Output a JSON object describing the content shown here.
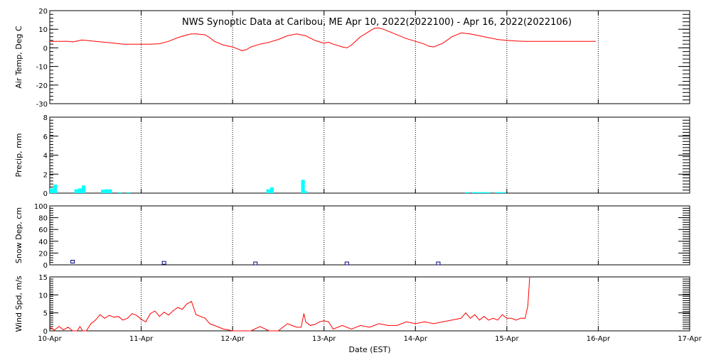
{
  "chart_data": [
    {
      "panel": "air-temp",
      "type": "line",
      "title": "NWS Synoptic Data at Caribou, ME   Apr 10, 2022(2022100) - Apr 16, 2022(2022106)",
      "ylabel": "Air Temp, Deg C",
      "ylim": [
        -30,
        20
      ],
      "yticks": [
        "20",
        "10",
        "0",
        "-10",
        "-20",
        "-30"
      ],
      "grid": "dotted vertical at day boundaries",
      "series": [
        {
          "color": "#ff0000",
          "x": [
            0.0,
            0.1,
            0.2,
            0.25,
            0.3,
            0.35,
            0.4,
            0.5,
            0.6,
            0.7,
            0.8,
            1.0,
            1.1,
            1.2,
            1.3,
            1.4,
            1.5,
            1.55,
            1.6,
            1.7,
            1.75,
            1.8,
            1.9,
            2.0,
            2.05,
            2.1,
            2.15,
            2.2,
            2.3,
            2.4,
            2.5,
            2.6,
            2.7,
            2.8,
            2.9,
            3.0,
            3.05,
            3.1,
            3.2,
            3.25,
            3.3,
            3.4,
            3.5,
            3.55,
            3.6,
            3.65,
            3.7,
            3.8,
            3.9,
            4.0,
            4.1,
            4.15,
            4.2,
            4.3,
            4.4,
            4.5,
            4.6,
            4.7,
            4.8,
            4.9,
            5.0,
            5.1,
            5.2,
            5.5,
            5.8,
            5.97
          ],
          "values": [
            3.5,
            3.5,
            3.5,
            3.2,
            3.7,
            4.2,
            4.0,
            3.5,
            3.0,
            2.5,
            2.0,
            2.0,
            2.0,
            2.2,
            3.5,
            5.5,
            7.0,
            7.5,
            7.5,
            7.0,
            5.5,
            3.5,
            1.5,
            0.5,
            -0.5,
            -1.5,
            -1.0,
            0.5,
            2.0,
            3.0,
            4.5,
            6.5,
            7.5,
            6.5,
            4.0,
            2.5,
            3.0,
            2.0,
            0.5,
            0.0,
            1.5,
            6.0,
            9.0,
            10.5,
            10.7,
            10.0,
            9.0,
            7.0,
            5.0,
            3.5,
            2.0,
            0.8,
            0.5,
            2.5,
            6.0,
            8.0,
            7.5,
            6.5,
            5.5,
            4.5,
            4.0,
            3.7,
            3.5,
            3.5,
            3.5,
            3.5
          ]
        }
      ]
    },
    {
      "panel": "precip",
      "type": "bar",
      "ylabel": "Precip, mm",
      "ylim": [
        0,
        8
      ],
      "yticks": [
        "8",
        "6",
        "4",
        "2",
        "0"
      ],
      "bar_color": "#00ffff",
      "bars": [
        {
          "x": 0.0,
          "w": 0.04,
          "v": 0.5
        },
        {
          "x": 0.04,
          "w": 0.04,
          "v": 0.9
        },
        {
          "x": 0.27,
          "w": 0.04,
          "v": 0.4
        },
        {
          "x": 0.31,
          "w": 0.04,
          "v": 0.5
        },
        {
          "x": 0.35,
          "w": 0.04,
          "v": 0.8
        },
        {
          "x": 0.56,
          "w": 0.04,
          "v": 0.35
        },
        {
          "x": 0.6,
          "w": 0.04,
          "v": 0.4
        },
        {
          "x": 0.64,
          "w": 0.04,
          "v": 0.4
        },
        {
          "x": 0.75,
          "w": 0.04,
          "v": 0.1
        },
        {
          "x": 0.84,
          "w": 0.04,
          "v": 0.1
        },
        {
          "x": 2.37,
          "w": 0.04,
          "v": 0.4
        },
        {
          "x": 2.41,
          "w": 0.04,
          "v": 0.6
        },
        {
          "x": 2.75,
          "w": 0.04,
          "v": 1.4
        },
        {
          "x": 2.79,
          "w": 0.03,
          "v": 0.2
        },
        {
          "x": 4.54,
          "w": 0.05,
          "v": 0.1
        },
        {
          "x": 4.62,
          "w": 0.2,
          "v": 0.1
        },
        {
          "x": 4.87,
          "w": 0.12,
          "v": 0.1
        }
      ]
    },
    {
      "panel": "snow-depth",
      "type": "scatter",
      "ylabel": "Snow Dep, cm",
      "ylim": [
        0,
        100
      ],
      "yticks": [
        "100",
        "80",
        "60",
        "40",
        "20",
        "0"
      ],
      "marker_color": "#000080",
      "x": [
        0.25,
        1.25,
        2.25,
        3.25,
        4.25
      ],
      "values": [
        3,
        1,
        0,
        0,
        0
      ]
    },
    {
      "panel": "wind-speed",
      "type": "line",
      "ylabel": "Wind Spd, m/s",
      "xlabel": "Date (EST)",
      "ylim": [
        0,
        15
      ],
      "yticks": [
        "15",
        "10",
        "5",
        "0"
      ],
      "xticks": [
        "10-Apr",
        "11-Apr",
        "12-Apr",
        "13-Apr",
        "14-Apr",
        "15-Apr",
        "16-Apr",
        "17-Apr"
      ],
      "series": [
        {
          "color": "#ff0000",
          "x": [
            0.0,
            0.05,
            0.1,
            0.15,
            0.2,
            0.25,
            0.3,
            0.33,
            0.36,
            0.4,
            0.45,
            0.5,
            0.55,
            0.6,
            0.65,
            0.7,
            0.75,
            0.8,
            0.85,
            0.9,
            0.95,
            1.0,
            1.05,
            1.1,
            1.15,
            1.2,
            1.25,
            1.3,
            1.35,
            1.4,
            1.45,
            1.5,
            1.55,
            1.6,
            1.65,
            1.7,
            1.75,
            1.8,
            1.85,
            1.9,
            1.95,
            2.0,
            2.1,
            2.2,
            2.3,
            2.4,
            2.5,
            2.55,
            2.6,
            2.65,
            2.7,
            2.75,
            2.78,
            2.8,
            2.85,
            2.9,
            2.95,
            3.0,
            3.05,
            3.1,
            3.2,
            3.3,
            3.4,
            3.5,
            3.6,
            3.7,
            3.8,
            3.9,
            4.0,
            4.1,
            4.2,
            4.3,
            4.4,
            4.5,
            4.55,
            4.6,
            4.65,
            4.7,
            4.75,
            4.8,
            4.85,
            4.9,
            4.95,
            5.0,
            5.05,
            5.1,
            5.15,
            5.2,
            5.23,
            5.25
          ],
          "values": [
            1.0,
            0.2,
            1.2,
            0.3,
            1.0,
            0.0,
            0.0,
            1.2,
            0.0,
            0.0,
            2.0,
            3.0,
            4.5,
            3.5,
            4.3,
            3.8,
            4.0,
            3.0,
            3.5,
            4.8,
            4.3,
            3.2,
            2.5,
            4.8,
            5.5,
            4.0,
            5.2,
            4.4,
            5.6,
            6.5,
            6.0,
            7.5,
            8.2,
            4.5,
            4.0,
            3.5,
            2.0,
            1.5,
            1.0,
            0.5,
            0.3,
            0.0,
            0.0,
            0.0,
            1.2,
            0.0,
            0.0,
            1.0,
            2.0,
            1.5,
            1.0,
            1.0,
            4.8,
            2.5,
            1.5,
            1.8,
            2.5,
            2.8,
            2.5,
            0.5,
            1.5,
            0.5,
            1.5,
            1.0,
            2.0,
            1.5,
            1.5,
            2.5,
            2.0,
            2.5,
            2.0,
            2.5,
            3.0,
            3.5,
            5.0,
            3.5,
            4.5,
            3.0,
            4.0,
            3.0,
            3.5,
            3.0,
            4.5,
            3.5,
            3.5,
            3.0,
            3.5,
            3.5,
            7.0,
            15.0
          ]
        }
      ]
    }
  ]
}
